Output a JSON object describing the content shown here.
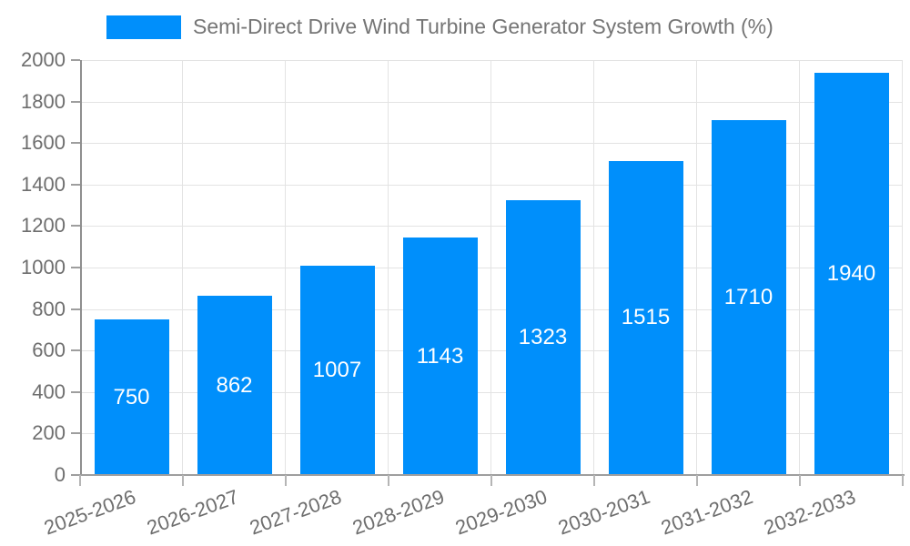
{
  "chart_data": {
    "type": "bar",
    "title": "Semi-Direct Drive Wind Turbine Generator System Growth (%)",
    "categories": [
      "2025-2026",
      "2026-2027",
      "2027-2028",
      "2028-2029",
      "2029-2030",
      "2030-2031",
      "2031-2032",
      "2032-2033"
    ],
    "values": [
      750,
      862,
      1007,
      1143,
      1323,
      1515,
      1710,
      1940
    ],
    "series_name": "Semi-Direct Drive Wind Turbine Generator System Growth (%)",
    "xlabel": "",
    "ylabel": "",
    "ylim": [
      0,
      2000
    ],
    "yticks": [
      0,
      200,
      400,
      600,
      800,
      1000,
      1200,
      1400,
      1600,
      1800,
      2000
    ],
    "grid": true,
    "legend_position": "top",
    "bar_color": "#008FFB",
    "value_label_color": "#ffffff",
    "axis_text_color": "#6e6e6e",
    "title_text_color": "#757575",
    "gridline_color": "#e3e3e3"
  }
}
